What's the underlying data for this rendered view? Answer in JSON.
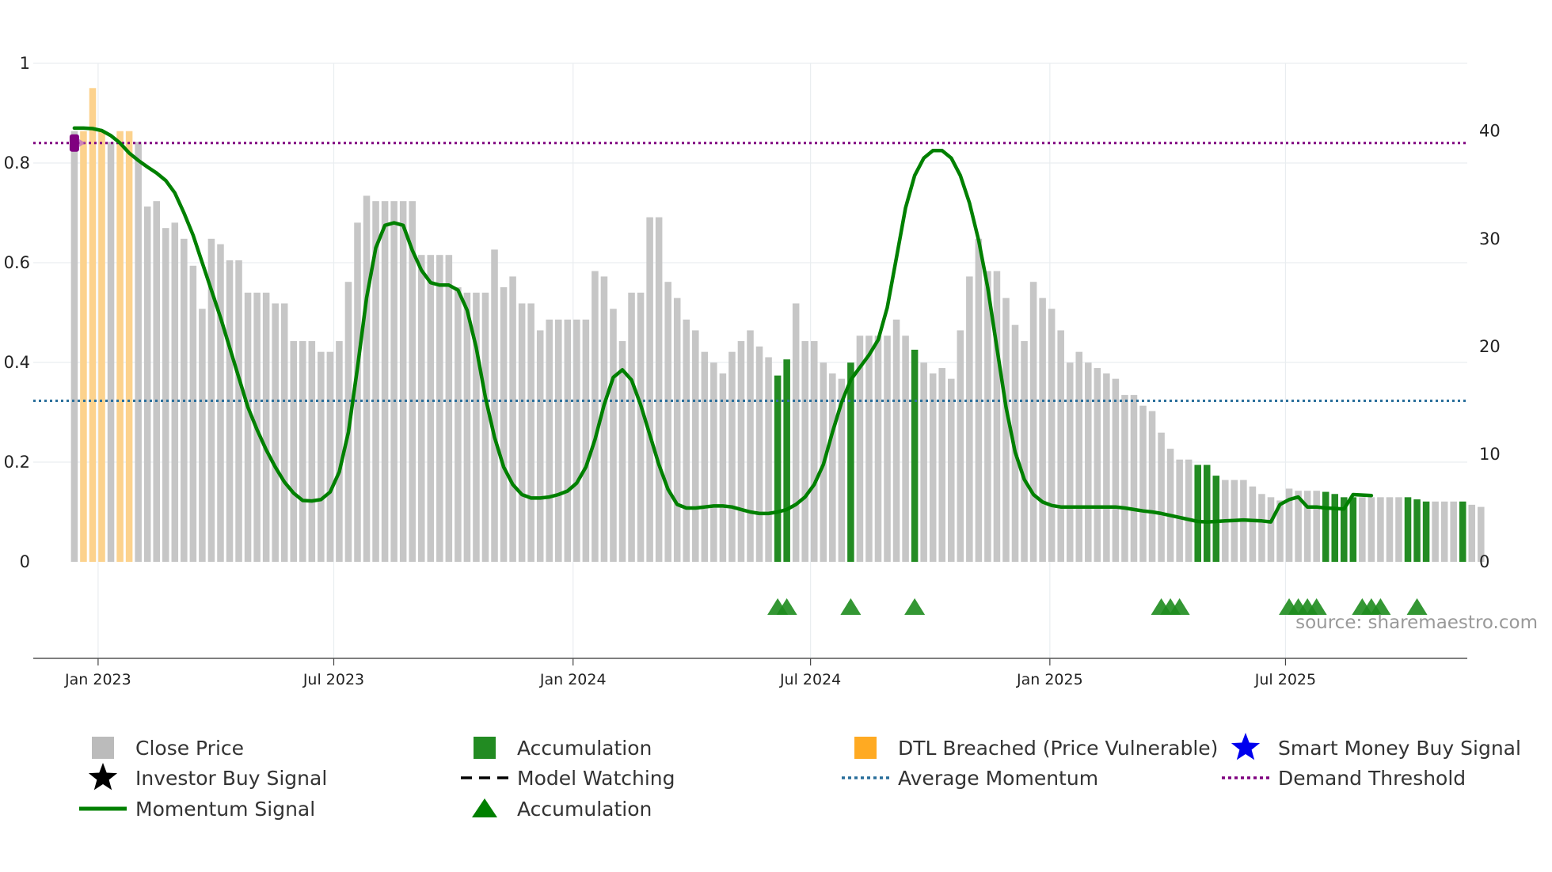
{
  "chart_data": {
    "type": "bar",
    "title": "",
    "left_axis": {
      "min": 0,
      "max": 1,
      "ticks": [
        "0",
        "0.2",
        "0.4",
        "0.6",
        "0.8",
        "1"
      ],
      "tick_values": [
        0,
        0.2,
        0.4,
        0.6,
        0.8,
        1
      ]
    },
    "right_axis": {
      "min": 0,
      "max": 46.3,
      "ticks": [
        "0",
        "10",
        "20",
        "30",
        "40"
      ],
      "tick_values": [
        0,
        10,
        20,
        30,
        40
      ]
    },
    "x_range_weeks": [
      -4.5,
      152.5
    ],
    "x_ticks": [
      {
        "label": "Jan 2023",
        "week": 2.6
      },
      {
        "label": "Jul 2023",
        "week": 28.4
      },
      {
        "label": "Jan 2024",
        "week": 54.6
      },
      {
        "label": "Jul 2024",
        "week": 80.6
      },
      {
        "label": "Jan 2025",
        "week": 106.8
      },
      {
        "label": "Jul 2025",
        "week": 132.6
      }
    ],
    "bar_categories": "C = close price (gray), A = accumulation (green), D = DTL breached (orange)",
    "close_price": [
      {
        "v": 40,
        "c": "C"
      },
      {
        "v": 40,
        "c": "D"
      },
      {
        "v": 44,
        "c": "D"
      },
      {
        "v": 40,
        "c": "D"
      },
      {
        "v": 39,
        "c": "C"
      },
      {
        "v": 40,
        "c": "D"
      },
      {
        "v": 40,
        "c": "D"
      },
      {
        "v": 39,
        "c": "C"
      },
      {
        "v": 33,
        "c": "C"
      },
      {
        "v": 33.5,
        "c": "C"
      },
      {
        "v": 31,
        "c": "C"
      },
      {
        "v": 31.5,
        "c": "C"
      },
      {
        "v": 30,
        "c": "C"
      },
      {
        "v": 27.5,
        "c": "C"
      },
      {
        "v": 23.5,
        "c": "C"
      },
      {
        "v": 30,
        "c": "C"
      },
      {
        "v": 29.5,
        "c": "C"
      },
      {
        "v": 28,
        "c": "C"
      },
      {
        "v": 28,
        "c": "C"
      },
      {
        "v": 25,
        "c": "C"
      },
      {
        "v": 25,
        "c": "C"
      },
      {
        "v": 25,
        "c": "C"
      },
      {
        "v": 24,
        "c": "C"
      },
      {
        "v": 24,
        "c": "C"
      },
      {
        "v": 20.5,
        "c": "C"
      },
      {
        "v": 20.5,
        "c": "C"
      },
      {
        "v": 20.5,
        "c": "C"
      },
      {
        "v": 19.5,
        "c": "C"
      },
      {
        "v": 19.5,
        "c": "C"
      },
      {
        "v": 20.5,
        "c": "C"
      },
      {
        "v": 26,
        "c": "C"
      },
      {
        "v": 31.5,
        "c": "C"
      },
      {
        "v": 34,
        "c": "C"
      },
      {
        "v": 33.5,
        "c": "C"
      },
      {
        "v": 33.5,
        "c": "C"
      },
      {
        "v": 33.5,
        "c": "C"
      },
      {
        "v": 33.5,
        "c": "C"
      },
      {
        "v": 33.5,
        "c": "C"
      },
      {
        "v": 28.5,
        "c": "C"
      },
      {
        "v": 28.5,
        "c": "C"
      },
      {
        "v": 28.5,
        "c": "C"
      },
      {
        "v": 28.5,
        "c": "C"
      },
      {
        "v": 25.5,
        "c": "C"
      },
      {
        "v": 25,
        "c": "C"
      },
      {
        "v": 25,
        "c": "C"
      },
      {
        "v": 25,
        "c": "C"
      },
      {
        "v": 29,
        "c": "C"
      },
      {
        "v": 25.5,
        "c": "C"
      },
      {
        "v": 26.5,
        "c": "C"
      },
      {
        "v": 24,
        "c": "C"
      },
      {
        "v": 24,
        "c": "C"
      },
      {
        "v": 21.5,
        "c": "C"
      },
      {
        "v": 22.5,
        "c": "C"
      },
      {
        "v": 22.5,
        "c": "C"
      },
      {
        "v": 22.5,
        "c": "C"
      },
      {
        "v": 22.5,
        "c": "C"
      },
      {
        "v": 22.5,
        "c": "C"
      },
      {
        "v": 27,
        "c": "C"
      },
      {
        "v": 26.5,
        "c": "C"
      },
      {
        "v": 23.5,
        "c": "C"
      },
      {
        "v": 20.5,
        "c": "C"
      },
      {
        "v": 25,
        "c": "C"
      },
      {
        "v": 25,
        "c": "C"
      },
      {
        "v": 32,
        "c": "C"
      },
      {
        "v": 32,
        "c": "C"
      },
      {
        "v": 26,
        "c": "C"
      },
      {
        "v": 24.5,
        "c": "C"
      },
      {
        "v": 22.5,
        "c": "C"
      },
      {
        "v": 21.5,
        "c": "C"
      },
      {
        "v": 19.5,
        "c": "C"
      },
      {
        "v": 18.5,
        "c": "C"
      },
      {
        "v": 17.5,
        "c": "C"
      },
      {
        "v": 19.5,
        "c": "C"
      },
      {
        "v": 20.5,
        "c": "C"
      },
      {
        "v": 21.5,
        "c": "C"
      },
      {
        "v": 20,
        "c": "C"
      },
      {
        "v": 19,
        "c": "C"
      },
      {
        "v": 17.3,
        "c": "A"
      },
      {
        "v": 18.8,
        "c": "A"
      },
      {
        "v": 24,
        "c": "C"
      },
      {
        "v": 20.5,
        "c": "C"
      },
      {
        "v": 20.5,
        "c": "C"
      },
      {
        "v": 18.5,
        "c": "C"
      },
      {
        "v": 17.5,
        "c": "C"
      },
      {
        "v": 17,
        "c": "C"
      },
      {
        "v": 18.5,
        "c": "A"
      },
      {
        "v": 21,
        "c": "C"
      },
      {
        "v": 21,
        "c": "C"
      },
      {
        "v": 21,
        "c": "C"
      },
      {
        "v": 21,
        "c": "C"
      },
      {
        "v": 22.5,
        "c": "C"
      },
      {
        "v": 21,
        "c": "C"
      },
      {
        "v": 19.7,
        "c": "A"
      },
      {
        "v": 18.5,
        "c": "C"
      },
      {
        "v": 17.5,
        "c": "C"
      },
      {
        "v": 18,
        "c": "C"
      },
      {
        "v": 17,
        "c": "C"
      },
      {
        "v": 21.5,
        "c": "C"
      },
      {
        "v": 26.5,
        "c": "C"
      },
      {
        "v": 30,
        "c": "C"
      },
      {
        "v": 27,
        "c": "C"
      },
      {
        "v": 27,
        "c": "C"
      },
      {
        "v": 24.5,
        "c": "C"
      },
      {
        "v": 22,
        "c": "C"
      },
      {
        "v": 20.5,
        "c": "C"
      },
      {
        "v": 26,
        "c": "C"
      },
      {
        "v": 24.5,
        "c": "C"
      },
      {
        "v": 23.5,
        "c": "C"
      },
      {
        "v": 21.5,
        "c": "C"
      },
      {
        "v": 18.5,
        "c": "C"
      },
      {
        "v": 19.5,
        "c": "C"
      },
      {
        "v": 18.5,
        "c": "C"
      },
      {
        "v": 18,
        "c": "C"
      },
      {
        "v": 17.5,
        "c": "C"
      },
      {
        "v": 17,
        "c": "C"
      },
      {
        "v": 15.5,
        "c": "C"
      },
      {
        "v": 15.5,
        "c": "C"
      },
      {
        "v": 14.5,
        "c": "C"
      },
      {
        "v": 14,
        "c": "C"
      },
      {
        "v": 12,
        "c": "C"
      },
      {
        "v": 10.5,
        "c": "C"
      },
      {
        "v": 9.5,
        "c": "C"
      },
      {
        "v": 9.5,
        "c": "C"
      },
      {
        "v": 9,
        "c": "A"
      },
      {
        "v": 9,
        "c": "A"
      },
      {
        "v": 8,
        "c": "A"
      },
      {
        "v": 7.6,
        "c": "C"
      },
      {
        "v": 7.6,
        "c": "C"
      },
      {
        "v": 7.6,
        "c": "C"
      },
      {
        "v": 7,
        "c": "C"
      },
      {
        "v": 6.3,
        "c": "C"
      },
      {
        "v": 6,
        "c": "C"
      },
      {
        "v": 5.7,
        "c": "C"
      },
      {
        "v": 6.8,
        "c": "C"
      },
      {
        "v": 6.6,
        "c": "C"
      },
      {
        "v": 6.6,
        "c": "C"
      },
      {
        "v": 6.6,
        "c": "C"
      },
      {
        "v": 6.5,
        "c": "A"
      },
      {
        "v": 6.3,
        "c": "A"
      },
      {
        "v": 6,
        "c": "A"
      },
      {
        "v": 6,
        "c": "A"
      },
      {
        "v": 6,
        "c": "C"
      },
      {
        "v": 6,
        "c": "C"
      },
      {
        "v": 6,
        "c": "C"
      },
      {
        "v": 6,
        "c": "C"
      },
      {
        "v": 6,
        "c": "C"
      },
      {
        "v": 6,
        "c": "A"
      },
      {
        "v": 5.8,
        "c": "A"
      },
      {
        "v": 5.6,
        "c": "A"
      },
      {
        "v": 5.6,
        "c": "C"
      },
      {
        "v": 5.6,
        "c": "C"
      },
      {
        "v": 5.6,
        "c": "C"
      },
      {
        "v": 5.6,
        "c": "A"
      },
      {
        "v": 5.3,
        "c": "C"
      },
      {
        "v": 5.1,
        "c": "C"
      }
    ],
    "momentum_signal": [
      [
        0,
        0.87
      ],
      [
        1,
        0.87
      ],
      [
        2,
        0.869
      ],
      [
        3,
        0.865
      ],
      [
        4,
        0.855
      ],
      [
        5,
        0.84
      ],
      [
        6,
        0.82
      ],
      [
        7,
        0.805
      ],
      [
        8,
        0.792
      ],
      [
        9,
        0.78
      ],
      [
        10,
        0.765
      ],
      [
        11,
        0.74
      ],
      [
        12,
        0.7
      ],
      [
        13,
        0.655
      ],
      [
        14,
        0.6
      ],
      [
        15,
        0.545
      ],
      [
        16,
        0.49
      ],
      [
        17,
        0.43
      ],
      [
        18,
        0.37
      ],
      [
        19,
        0.31
      ],
      [
        20,
        0.265
      ],
      [
        21,
        0.225
      ],
      [
        22,
        0.19
      ],
      [
        23,
        0.16
      ],
      [
        24,
        0.138
      ],
      [
        25,
        0.123
      ],
      [
        26,
        0.122
      ],
      [
        27,
        0.125
      ],
      [
        28,
        0.14
      ],
      [
        29,
        0.18
      ],
      [
        30,
        0.26
      ],
      [
        31,
        0.39
      ],
      [
        32,
        0.53
      ],
      [
        33,
        0.63
      ],
      [
        34,
        0.675
      ],
      [
        35,
        0.68
      ],
      [
        36,
        0.675
      ],
      [
        37,
        0.625
      ],
      [
        38,
        0.585
      ],
      [
        39,
        0.56
      ],
      [
        40,
        0.555
      ],
      [
        41,
        0.555
      ],
      [
        42,
        0.545
      ],
      [
        43,
        0.505
      ],
      [
        44,
        0.43
      ],
      [
        45,
        0.33
      ],
      [
        46,
        0.25
      ],
      [
        47,
        0.19
      ],
      [
        48,
        0.155
      ],
      [
        49,
        0.135
      ],
      [
        50,
        0.128
      ],
      [
        51,
        0.128
      ],
      [
        52,
        0.13
      ],
      [
        53,
        0.135
      ],
      [
        54,
        0.142
      ],
      [
        55,
        0.158
      ],
      [
        56,
        0.19
      ],
      [
        57,
        0.245
      ],
      [
        58,
        0.315
      ],
      [
        59,
        0.37
      ],
      [
        60,
        0.385
      ],
      [
        61,
        0.365
      ],
      [
        62,
        0.315
      ],
      [
        63,
        0.255
      ],
      [
        64,
        0.195
      ],
      [
        65,
        0.145
      ],
      [
        66,
        0.115
      ],
      [
        67,
        0.108
      ],
      [
        68,
        0.108
      ],
      [
        69,
        0.11
      ],
      [
        70,
        0.112
      ],
      [
        71,
        0.112
      ],
      [
        72,
        0.11
      ],
      [
        73,
        0.105
      ],
      [
        74,
        0.1
      ],
      [
        75,
        0.097
      ],
      [
        76,
        0.097
      ],
      [
        77,
        0.1
      ],
      [
        78,
        0.105
      ],
      [
        79,
        0.115
      ],
      [
        80,
        0.13
      ],
      [
        81,
        0.155
      ],
      [
        82,
        0.195
      ],
      [
        83,
        0.26
      ],
      [
        84,
        0.32
      ],
      [
        85,
        0.365
      ],
      [
        86,
        0.39
      ],
      [
        87,
        0.415
      ],
      [
        88,
        0.445
      ],
      [
        89,
        0.51
      ],
      [
        90,
        0.61
      ],
      [
        91,
        0.71
      ],
      [
        92,
        0.775
      ],
      [
        93,
        0.81
      ],
      [
        94,
        0.825
      ],
      [
        95,
        0.825
      ],
      [
        96,
        0.81
      ],
      [
        97,
        0.775
      ],
      [
        98,
        0.72
      ],
      [
        99,
        0.645
      ],
      [
        100,
        0.55
      ],
      [
        101,
        0.43
      ],
      [
        102,
        0.31
      ],
      [
        103,
        0.22
      ],
      [
        104,
        0.165
      ],
      [
        105,
        0.135
      ],
      [
        106,
        0.12
      ],
      [
        107,
        0.113
      ],
      [
        108,
        0.11
      ],
      [
        109,
        0.11
      ],
      [
        110,
        0.11
      ],
      [
        111,
        0.11
      ],
      [
        112,
        0.11
      ],
      [
        113,
        0.11
      ],
      [
        114,
        0.11
      ],
      [
        115,
        0.108
      ],
      [
        116,
        0.105
      ],
      [
        117,
        0.102
      ],
      [
        118,
        0.1
      ],
      [
        119,
        0.097
      ],
      [
        120,
        0.093
      ],
      [
        121,
        0.089
      ],
      [
        122,
        0.085
      ],
      [
        123,
        0.081
      ],
      [
        124,
        0.08
      ],
      [
        125,
        0.081
      ],
      [
        126,
        0.082
      ],
      [
        127,
        0.083
      ],
      [
        128,
        0.084
      ],
      [
        129,
        0.083
      ],
      [
        130,
        0.082
      ],
      [
        131,
        0.08
      ],
      [
        132,
        0.115
      ],
      [
        133,
        0.125
      ],
      [
        134,
        0.13
      ],
      [
        135,
        0.11
      ],
      [
        136,
        0.11
      ],
      [
        137,
        0.108
      ],
      [
        138,
        0.107
      ],
      [
        139,
        0.106
      ],
      [
        140,
        0.135
      ],
      [
        141,
        0.134
      ],
      [
        142,
        0.133
      ]
    ],
    "average_momentum": 0.323,
    "demand_threshold": 0.84,
    "accumulation_markers_weeks": [
      77,
      78,
      85,
      92,
      119,
      120,
      121,
      133,
      134,
      135,
      136,
      141,
      142,
      143,
      147
    ],
    "start_marker": {
      "label": "smart money / DTL start marker",
      "week": 0,
      "value": 0.84
    },
    "legend": [
      {
        "label": "Close Price",
        "symbol": "square",
        "color": "#bbbbbb"
      },
      {
        "label": "Accumulation",
        "symbol": "square",
        "color": "#228b22"
      },
      {
        "label": "DTL Breached (Price Vulnerable)",
        "symbol": "square",
        "color": "#ffaa22"
      },
      {
        "label": "Smart Money Buy Signal",
        "symbol": "star",
        "color": "#0000ee"
      },
      {
        "label": "Investor Buy Signal",
        "symbol": "star",
        "color": "#000000"
      },
      {
        "label": "Model Watching",
        "symbol": "dashed",
        "color": "#000000"
      },
      {
        "label": "Average Momentum",
        "symbol": "dotted",
        "color": "#2a6f9b"
      },
      {
        "label": "Demand Threshold",
        "symbol": "dotted",
        "color": "#800080"
      },
      {
        "label": "Momentum Signal",
        "symbol": "line",
        "color": "#008000"
      },
      {
        "label": "Accumulation",
        "symbol": "triangle",
        "color": "#008000"
      }
    ],
    "source": "source: sharemaestro.com",
    "colors": {
      "close": "#c6c6c6",
      "accum": "#228b22",
      "dtl": "#fcd28d",
      "momentum": "#008000",
      "avg": "#2a6f9b",
      "demand": "#800080",
      "marker": "#800080",
      "tri": "#1e8c1e"
    }
  }
}
